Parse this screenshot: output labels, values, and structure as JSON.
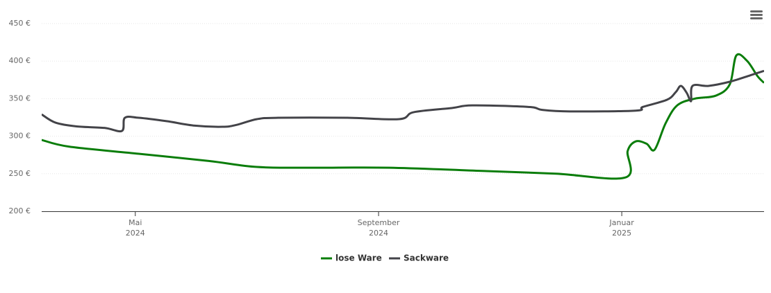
{
  "chart_data": {
    "type": "line",
    "ylim": [
      200,
      450
    ],
    "yticks": [
      {
        "value": 200,
        "label": "200 €"
      },
      {
        "value": 250,
        "label": "250 €"
      },
      {
        "value": 300,
        "label": "300 €"
      },
      {
        "value": 350,
        "label": "350 €"
      },
      {
        "value": 400,
        "label": "400 €"
      },
      {
        "value": 450,
        "label": "450 €"
      }
    ],
    "xlim": [
      2024.205,
      2025.195
    ],
    "xticks": [
      {
        "value": 2024.3333,
        "label": [
          "Mai",
          "2024"
        ]
      },
      {
        "value": 2024.6667,
        "label": [
          "September",
          "2024"
        ]
      },
      {
        "value": 2025.0,
        "label": [
          "Januar",
          "2025"
        ]
      }
    ],
    "grid": true,
    "legend": "bottom",
    "series": [
      {
        "name": "lose Ware",
        "color": "#0a7d0a",
        "x": [
          2024.205,
          2024.243,
          2024.338,
          2024.434,
          2024.5,
          2024.576,
          2024.681,
          2024.815,
          2024.91,
          2025.005,
          2025.008,
          2025.019,
          2025.034,
          2025.045,
          2025.06,
          2025.076,
          2025.1,
          2025.129,
          2025.148,
          2025.157,
          2025.172,
          2025.186,
          2025.195
        ],
        "values": [
          295,
          286,
          276.6,
          267,
          259,
          258,
          258,
          253.5,
          250,
          245,
          280,
          293,
          290,
          282,
          317,
          341,
          350,
          354,
          369,
          407.5,
          400,
          380,
          371
        ]
      },
      {
        "name": "Sackware",
        "color": "#434348",
        "x": [
          2024.205,
          2024.224,
          2024.253,
          2024.291,
          2024.315,
          2024.319,
          2024.338,
          2024.376,
          2024.415,
          2024.453,
          2024.472,
          2024.5,
          2024.529,
          2024.624,
          2024.695,
          2024.715,
          2024.767,
          2024.795,
          2024.872,
          2024.891,
          2024.929,
          2025.019,
          2025.029,
          2025.062,
          2025.074,
          2025.081,
          2025.089,
          2025.095,
          2025.097,
          2025.119,
          2025.148,
          2025.176,
          2025.195
        ],
        "values": [
          329,
          318,
          313,
          311,
          307,
          324.5,
          324.5,
          320,
          314,
          312.5,
          315,
          322.7,
          324.5,
          324.5,
          322.7,
          332,
          337.5,
          341,
          339,
          335,
          333,
          334,
          339,
          348.5,
          358.7,
          367,
          357.7,
          346.7,
          367,
          367,
          372.5,
          381,
          387
        ]
      }
    ]
  }
}
